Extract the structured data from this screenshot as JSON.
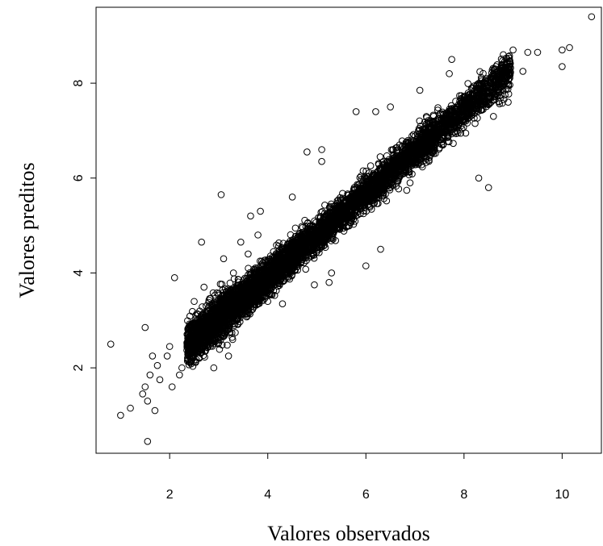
{
  "chart_data": {
    "type": "scatter",
    "title": "",
    "xlabel": "Valores observados",
    "ylabel": "Valores preditos",
    "xlim": [
      0.5,
      10.8
    ],
    "ylim": [
      0.2,
      9.6
    ],
    "x_ticks": [
      2,
      4,
      6,
      8,
      10
    ],
    "y_ticks": [
      2,
      4,
      6,
      8
    ],
    "grid": false,
    "legend": "none",
    "marker": "open-circle",
    "colors": {
      "points": "#000000",
      "frame": "#000000",
      "background": "#ffffff"
    },
    "dense_cloud": {
      "point_count_estimate": 6000,
      "x_range": [
        2.3,
        9.0
      ],
      "relationship": "approximately y = 0.88 * x + 0.40, dense near x 2.5 to 7.5"
    },
    "series": [
      {
        "points": [
          [
            0.8,
            2.5
          ],
          [
            1.0,
            1.0
          ],
          [
            1.2,
            1.15
          ],
          [
            1.45,
            1.45
          ],
          [
            1.5,
            1.6
          ],
          [
            1.55,
            0.45
          ],
          [
            1.55,
            1.3
          ],
          [
            1.6,
            1.85
          ],
          [
            1.65,
            2.25
          ],
          [
            1.7,
            1.1
          ],
          [
            1.75,
            2.05
          ],
          [
            1.5,
            2.85
          ],
          [
            1.8,
            1.75
          ],
          [
            1.95,
            2.25
          ],
          [
            2.0,
            2.45
          ],
          [
            2.05,
            1.6
          ],
          [
            2.1,
            3.9
          ],
          [
            2.2,
            1.85
          ],
          [
            2.25,
            2.0
          ],
          [
            2.65,
            4.65
          ],
          [
            3.05,
            5.65
          ],
          [
            3.1,
            4.3
          ],
          [
            3.45,
            4.65
          ],
          [
            3.65,
            5.2
          ],
          [
            3.8,
            4.8
          ],
          [
            3.85,
            5.3
          ],
          [
            4.3,
            4.2
          ],
          [
            4.8,
            6.55
          ],
          [
            5.1,
            6.6
          ],
          [
            5.25,
            3.8
          ],
          [
            5.3,
            4.0
          ],
          [
            5.1,
            6.35
          ],
          [
            5.8,
            7.4
          ],
          [
            6.0,
            4.15
          ],
          [
            6.2,
            7.4
          ],
          [
            6.3,
            4.5
          ],
          [
            6.5,
            7.5
          ],
          [
            7.1,
            7.85
          ],
          [
            7.75,
            8.5
          ],
          [
            7.7,
            8.2
          ],
          [
            8.3,
            6.0
          ],
          [
            8.5,
            5.8
          ],
          [
            8.6,
            7.3
          ],
          [
            8.65,
            8.35
          ],
          [
            8.8,
            8.6
          ],
          [
            8.9,
            7.6
          ],
          [
            9.0,
            8.7
          ],
          [
            9.2,
            8.25
          ],
          [
            9.3,
            8.65
          ],
          [
            9.5,
            8.65
          ],
          [
            10.0,
            8.35
          ],
          [
            10.0,
            8.7
          ],
          [
            10.15,
            8.75
          ],
          [
            10.6,
            9.4
          ],
          [
            8.1,
            7.6
          ],
          [
            7.4,
            6.6
          ],
          [
            6.55,
            5.85
          ],
          [
            6.9,
            5.9
          ],
          [
            4.95,
            3.75
          ],
          [
            5.4,
            4.95
          ],
          [
            2.9,
            2.0
          ],
          [
            3.2,
            2.25
          ],
          [
            4.0,
            3.4
          ],
          [
            4.3,
            3.35
          ],
          [
            3.6,
            4.4
          ],
          [
            4.5,
            5.6
          ],
          [
            2.5,
            3.4
          ],
          [
            2.7,
            3.7
          ],
          [
            3.3,
            4.0
          ],
          [
            6.6,
            6.2
          ]
        ]
      }
    ]
  }
}
